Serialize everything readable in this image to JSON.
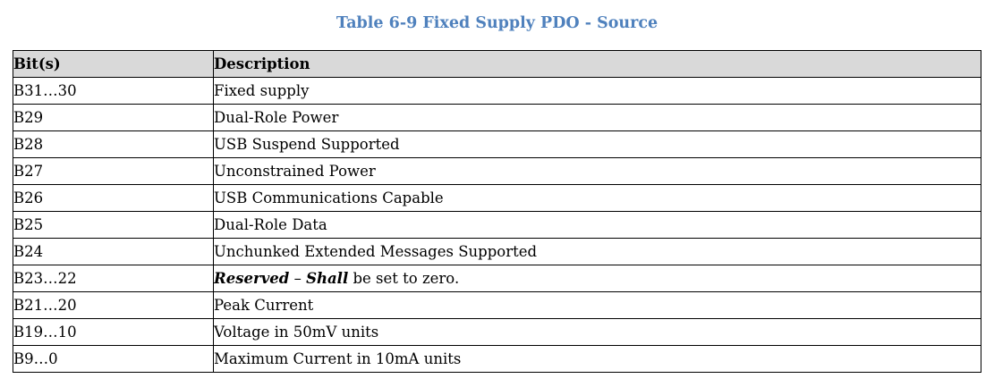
{
  "caption": "Table 6-9 Fixed Supply PDO - Source",
  "colors": {
    "caption": "#4f81bd",
    "header_bg": "#d9d9d9",
    "border": "#000000"
  },
  "table": {
    "headers": {
      "bits": "Bit(s)",
      "description": "Description"
    },
    "rows": [
      {
        "bits": "B31…30",
        "description": "Fixed supply"
      },
      {
        "bits": "B29",
        "description": "Dual-Role Power"
      },
      {
        "bits": "B28",
        "description": "USB Suspend Supported"
      },
      {
        "bits": "B27",
        "description": "Unconstrained Power"
      },
      {
        "bits": "B26",
        "description": "USB Communications Capable"
      },
      {
        "bits": "B25",
        "description": "Dual-Role Data"
      },
      {
        "bits": "B24",
        "description": "Unchunked Extended Messages Supported"
      },
      {
        "bits": "B23…22",
        "description_parts": {
          "term1": "Reserved",
          "sep": " – ",
          "term2": "Shall",
          "rest": " be set to zero."
        }
      },
      {
        "bits": "B21…20",
        "description": "Peak Current"
      },
      {
        "bits": "B19…10",
        "description": "Voltage in 50mV units"
      },
      {
        "bits": "B9…0",
        "description": "Maximum Current in 10mA units"
      }
    ]
  }
}
